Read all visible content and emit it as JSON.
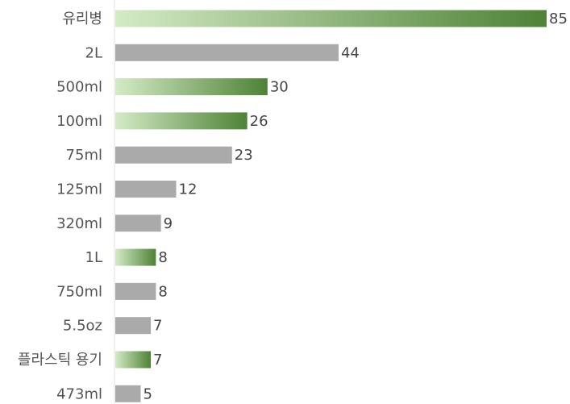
{
  "chart_data": {
    "type": "bar",
    "orientation": "horizontal",
    "categories": [
      "유리병",
      "2L",
      "500ml",
      "100ml",
      "75ml",
      "125ml",
      "320ml",
      "1L",
      "750ml",
      "5.5oz",
      "플라스틱 용기",
      "473ml"
    ],
    "values": [
      85,
      44,
      30,
      26,
      23,
      12,
      9,
      8,
      8,
      7,
      7,
      5
    ],
    "highlighted": [
      true,
      false,
      true,
      true,
      false,
      false,
      false,
      true,
      false,
      false,
      true,
      false
    ],
    "xlim": [
      0,
      85
    ],
    "grid": false,
    "legend": "none",
    "colors": {
      "default_bar": "#aaaaaa",
      "highlight_start": "#d4ebc6",
      "highlight_end": "#4e8236",
      "axis_line": "#e0e0e0"
    }
  }
}
